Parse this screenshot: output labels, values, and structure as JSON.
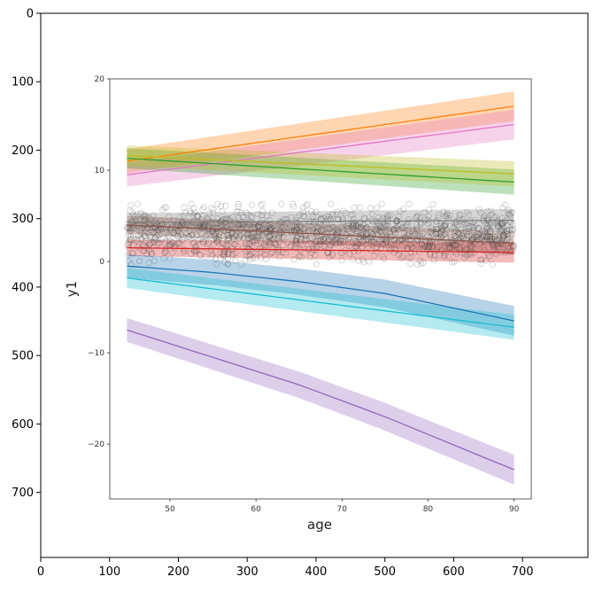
{
  "chart_data": [
    {
      "type": "image_axes",
      "x_ticks": [
        "0",
        "100",
        "200",
        "300",
        "400",
        "500",
        "600",
        "700"
      ],
      "y_ticks": [
        "0",
        "100",
        "200",
        "300",
        "400",
        "500",
        "600",
        "700"
      ],
      "xlim": [
        0,
        795
      ],
      "ylim": [
        795,
        0
      ]
    },
    {
      "type": "line",
      "title": "",
      "xlabel": "age",
      "ylabel": "y1",
      "xlim": [
        43,
        92
      ],
      "ylim": [
        -26,
        20
      ],
      "x_ticks": [
        50,
        60,
        70,
        80,
        90
      ],
      "y_ticks": [
        -20,
        -10,
        0,
        10,
        20
      ],
      "y_tick_labels": [
        "−20",
        "−10",
        "0",
        "10",
        "20"
      ],
      "grid": false,
      "scatter_cloud": {
        "x_range": [
          45,
          90
        ],
        "y_center": 3,
        "y_spread": 3.3,
        "color": "#333333"
      },
      "series": [
        {
          "color": "#ff7f0e",
          "x": [
            45,
            90
          ],
          "y": [
            11,
            17
          ],
          "band": 1.3
        },
        {
          "color": "#e377c2",
          "x": [
            45,
            90
          ],
          "y": [
            9.5,
            15
          ],
          "band": 1.3
        },
        {
          "color": "#2ca02c",
          "x": [
            45,
            90
          ],
          "y": [
            11.3,
            8.7
          ],
          "band": 1.1
        },
        {
          "color": "#bcbd22",
          "x": [
            45,
            90
          ],
          "y": [
            11.6,
            9.6
          ],
          "band": 1.1
        },
        {
          "color": "#7f7f7f",
          "x": [
            45,
            90
          ],
          "y": [
            4.3,
            4.5
          ],
          "band": 1.0
        },
        {
          "color": "#8c564b",
          "x": [
            45,
            90
          ],
          "y": [
            4.0,
            2.0
          ],
          "band": 1.0
        },
        {
          "color": "#d62728",
          "x": [
            45,
            90
          ],
          "y": [
            1.5,
            1.0
          ],
          "band": 0.9
        },
        {
          "color": "#1f77b4",
          "x": [
            45,
            55,
            65,
            75,
            90
          ],
          "y": [
            -0.5,
            -1.2,
            -2.2,
            -3.5,
            -6.5
          ],
          "band": 1.3
        },
        {
          "color": "#17becf",
          "x": [
            45,
            90
          ],
          "y": [
            -1.8,
            -7.2
          ],
          "band": 1.1
        },
        {
          "color": "#9467bd",
          "x": [
            45,
            55,
            65,
            75,
            90
          ],
          "y": [
            -7.5,
            -10.5,
            -13.5,
            -17.0,
            -22.8
          ],
          "band": 1.3
        }
      ]
    }
  ]
}
